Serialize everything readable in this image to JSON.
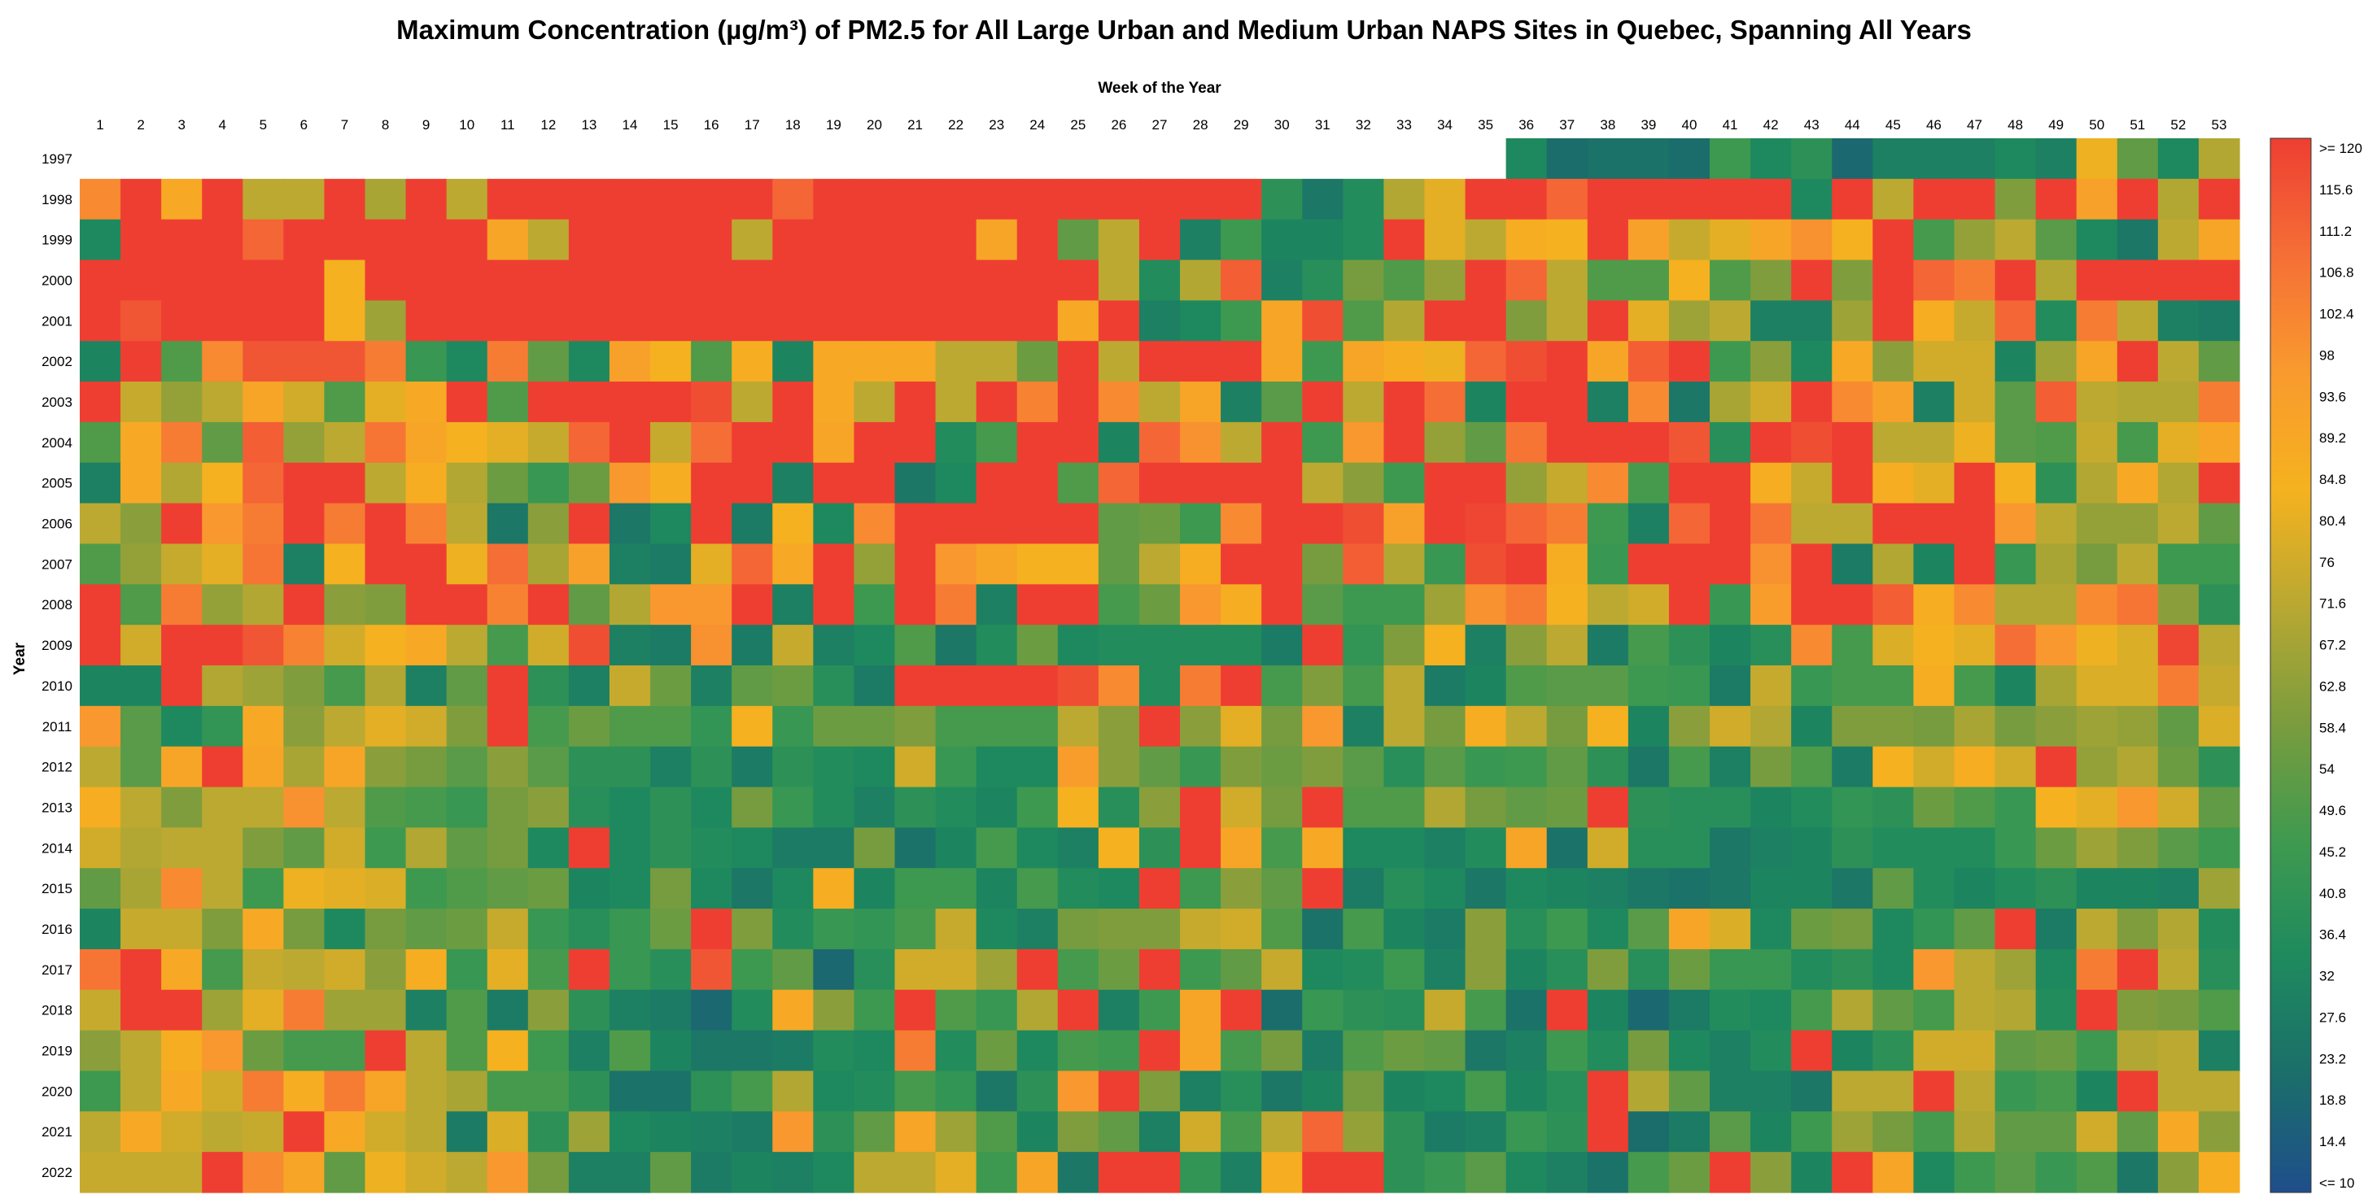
{
  "chart_data": {
    "type": "heatmap",
    "title": "Maximum Concentration (µg/m³) of PM2.5 for All Large Urban and Medium Urban NAPS Sites in Quebec, Spanning All Years",
    "xlabel": "Week of the Year",
    "ylabel": "Year",
    "x": [
      "1",
      "2",
      "3",
      "4",
      "5",
      "6",
      "7",
      "8",
      "9",
      "10",
      "11",
      "12",
      "13",
      "14",
      "15",
      "16",
      "17",
      "18",
      "19",
      "20",
      "21",
      "22",
      "23",
      "24",
      "25",
      "26",
      "27",
      "28",
      "29",
      "30",
      "31",
      "32",
      "33",
      "34",
      "35",
      "36",
      "37",
      "38",
      "39",
      "40",
      "41",
      "42",
      "43",
      "44",
      "45",
      "46",
      "47",
      "48",
      "49",
      "50",
      "51",
      "52",
      "53"
    ],
    "y": [
      "1997",
      "1998",
      "1999",
      "2000",
      "2001",
      "2002",
      "2003",
      "2004",
      "2005",
      "2006",
      "2007",
      "2008",
      "2009",
      "2010",
      "2011",
      "2012",
      "2013",
      "2014",
      "2015",
      "2016",
      "2017",
      "2018",
      "2019",
      "2020",
      "2021",
      "2022"
    ],
    "colorbar_ticks": [
      ">= 120",
      "115.6",
      "111.2",
      "106.8",
      "102.4",
      "98",
      "93.6",
      "89.2",
      "84.8",
      "80.4",
      "76",
      "71.6",
      "67.2",
      "62.8",
      "58.4",
      "54",
      "49.6",
      "45.2",
      "40.8",
      "36.4",
      "32",
      "27.6",
      "23.2",
      "18.8",
      "14.4",
      "<= 10"
    ],
    "color_range": [
      10,
      120
    ],
    "colormap": [
      "#1f4e8c",
      "#1b6e6a",
      "#1e8a5e",
      "#3f9a4f",
      "#7a9c3e",
      "#b8a832",
      "#f5b21f",
      "#f99a2e",
      "#f56f36",
      "#ee3e32"
    ],
    "values": [
      [
        null,
        null,
        null,
        null,
        null,
        null,
        null,
        null,
        null,
        null,
        null,
        null,
        null,
        null,
        null,
        null,
        null,
        null,
        null,
        null,
        null,
        null,
        null,
        null,
        null,
        null,
        null,
        null,
        null,
        null,
        null,
        null,
        null,
        null,
        null,
        34,
        22,
        24,
        24,
        22,
        46,
        34,
        40,
        20,
        30,
        30,
        30,
        34,
        30,
        82,
        54,
        34,
        70
      ],
      [
        100,
        120,
        88,
        120,
        72,
        72,
        120,
        68,
        120,
        72,
        120,
        120,
        120,
        120,
        120,
        120,
        120,
        110,
        120,
        120,
        120,
        120,
        120,
        120,
        120,
        120,
        120,
        120,
        120,
        40,
        26,
        36,
        70,
        80,
        120,
        120,
        110,
        120,
        120,
        120,
        120,
        120,
        34,
        120,
        72,
        120,
        120,
        60,
        120,
        92,
        120,
        70,
        120
      ],
      [
        34,
        120,
        120,
        120,
        110,
        120,
        120,
        120,
        120,
        120,
        90,
        72,
        120,
        120,
        120,
        120,
        72,
        120,
        120,
        120,
        120,
        120,
        90,
        120,
        54,
        72,
        120,
        30,
        46,
        32,
        32,
        36,
        120,
        80,
        72,
        86,
        84,
        120,
        92,
        74,
        80,
        90,
        98,
        84,
        120,
        48,
        64,
        72,
        52,
        34,
        26,
        72,
        90
      ],
      [
        120,
        120,
        120,
        120,
        120,
        120,
        84,
        120,
        120,
        120,
        120,
        120,
        120,
        120,
        120,
        120,
        120,
        120,
        120,
        120,
        120,
        120,
        120,
        120,
        120,
        72,
        36,
        70,
        112,
        30,
        38,
        58,
        50,
        64,
        120,
        110,
        72,
        50,
        50,
        84,
        50,
        60,
        120,
        60,
        120,
        110,
        104,
        120,
        70,
        120,
        120,
        120,
        120
      ],
      [
        120,
        114,
        120,
        120,
        120,
        120,
        84,
        66,
        120,
        120,
        120,
        120,
        120,
        120,
        120,
        120,
        120,
        120,
        120,
        120,
        120,
        120,
        120,
        120,
        88,
        120,
        30,
        34,
        46,
        90,
        116,
        50,
        70,
        120,
        120,
        60,
        72,
        120,
        80,
        66,
        72,
        30,
        30,
        66,
        120,
        86,
        74,
        110,
        36,
        104,
        72,
        30,
        28
      ],
      [
        32,
        120,
        50,
        100,
        114,
        114,
        114,
        104,
        44,
        34,
        104,
        54,
        34,
        92,
        84,
        50,
        86,
        32,
        88,
        88,
        88,
        72,
        72,
        56,
        120,
        72,
        120,
        120,
        120,
        90,
        46,
        90,
        86,
        82,
        110,
        116,
        120,
        90,
        112,
        120,
        46,
        62,
        34,
        88,
        62,
        76,
        76,
        32,
        66,
        90,
        120,
        72,
        54
      ],
      [
        120,
        74,
        64,
        72,
        90,
        76,
        50,
        80,
        88,
        120,
        50,
        120,
        120,
        120,
        120,
        116,
        72,
        120,
        88,
        72,
        120,
        72,
        120,
        102,
        120,
        100,
        72,
        90,
        30,
        52,
        120,
        72,
        120,
        108,
        32,
        120,
        120,
        30,
        100,
        26,
        68,
        76,
        120,
        100,
        92,
        30,
        76,
        52,
        112,
        72,
        70,
        70,
        104
      ],
      [
        50,
        88,
        104,
        54,
        112,
        64,
        72,
        106,
        90,
        84,
        80,
        74,
        110,
        120,
        74,
        108,
        120,
        120,
        90,
        120,
        120,
        36,
        48,
        120,
        120,
        32,
        110,
        98,
        72,
        120,
        46,
        96,
        120,
        64,
        54,
        106,
        120,
        120,
        120,
        114,
        38,
        120,
        116,
        120,
        72,
        72,
        82,
        52,
        50,
        74,
        48,
        80,
        90
      ],
      [
        30,
        88,
        70,
        84,
        110,
        120,
        120,
        72,
        86,
        70,
        56,
        44,
        56,
        96,
        86,
        120,
        120,
        30,
        120,
        120,
        26,
        34,
        120,
        120,
        50,
        110,
        120,
        120,
        120,
        120,
        72,
        62,
        46,
        120,
        120,
        64,
        74,
        100,
        48,
        120,
        120,
        86,
        74,
        120,
        86,
        80,
        120,
        84,
        40,
        70,
        88,
        70,
        120
      ],
      [
        72,
        62,
        120,
        96,
        104,
        120,
        104,
        120,
        102,
        72,
        26,
        62,
        120,
        26,
        34,
        120,
        28,
        84,
        34,
        100,
        120,
        120,
        120,
        120,
        120,
        54,
        56,
        46,
        100,
        120,
        120,
        116,
        92,
        120,
        118,
        110,
        104,
        46,
        30,
        110,
        120,
        106,
        72,
        72,
        120,
        120,
        120,
        96,
        72,
        64,
        64,
        72,
        54
      ],
      [
        50,
        64,
        74,
        80,
        106,
        30,
        84,
        120,
        120,
        82,
        108,
        68,
        92,
        30,
        28,
        80,
        110,
        88,
        120,
        64,
        120,
        96,
        90,
        84,
        84,
        54,
        72,
        86,
        120,
        120,
        58,
        112,
        70,
        44,
        116,
        120,
        86,
        44,
        120,
        120,
        120,
        98,
        120,
        28,
        70,
        32,
        120,
        44,
        68,
        58,
        72,
        46,
        46
      ],
      [
        120,
        50,
        104,
        64,
        70,
        120,
        62,
        60,
        120,
        120,
        102,
        120,
        54,
        70,
        96,
        96,
        120,
        30,
        120,
        46,
        120,
        104,
        30,
        120,
        120,
        48,
        56,
        96,
        86,
        120,
        52,
        46,
        46,
        66,
        98,
        104,
        84,
        72,
        76,
        120,
        44,
        94,
        120,
        120,
        112,
        86,
        100,
        70,
        70,
        100,
        106,
        62,
        40
      ],
      [
        120,
        76,
        120,
        120,
        114,
        102,
        76,
        84,
        88,
        72,
        48,
        76,
        116,
        30,
        28,
        98,
        28,
        74,
        30,
        34,
        50,
        26,
        36,
        56,
        34,
        36,
        36,
        36,
        36,
        28,
        120,
        42,
        60,
        84,
        30,
        62,
        72,
        28,
        48,
        40,
        32,
        38,
        100,
        48,
        78,
        84,
        80,
        108,
        96,
        82,
        78,
        118,
        72
      ],
      [
        32,
        32,
        120,
        70,
        66,
        60,
        48,
        70,
        30,
        54,
        120,
        40,
        30,
        74,
        56,
        30,
        54,
        56,
        38,
        28,
        120,
        120,
        120,
        120,
        116,
        100,
        36,
        104,
        120,
        48,
        60,
        48,
        72,
        28,
        32,
        50,
        52,
        52,
        46,
        44,
        28,
        74,
        44,
        48,
        48,
        86,
        48,
        32,
        68,
        78,
        78,
        104,
        74
      ],
      [
        96,
        52,
        34,
        42,
        88,
        62,
        72,
        80,
        76,
        60,
        120,
        48,
        56,
        50,
        50,
        42,
        84,
        44,
        56,
        56,
        60,
        48,
        48,
        48,
        72,
        62,
        120,
        62,
        80,
        58,
        96,
        30,
        72,
        58,
        86,
        72,
        58,
        84,
        32,
        62,
        76,
        70,
        32,
        60,
        60,
        58,
        68,
        58,
        62,
        66,
        64,
        54,
        78
      ],
      [
        72,
        52,
        90,
        120,
        90,
        68,
        90,
        62,
        58,
        52,
        62,
        52,
        40,
        40,
        30,
        40,
        28,
        40,
        36,
        34,
        76,
        44,
        34,
        34,
        94,
        62,
        54,
        44,
        60,
        56,
        60,
        52,
        38,
        52,
        44,
        46,
        54,
        40,
        26,
        48,
        30,
        58,
        50,
        28,
        84,
        76,
        86,
        76,
        120,
        64,
        70,
        56,
        40
      ],
      [
        86,
        72,
        60,
        72,
        72,
        98,
        72,
        50,
        48,
        44,
        58,
        62,
        38,
        34,
        40,
        34,
        58,
        44,
        36,
        30,
        40,
        36,
        32,
        46,
        84,
        38,
        62,
        120,
        76,
        58,
        120,
        50,
        50,
        70,
        58,
        54,
        56,
        120,
        40,
        38,
        38,
        32,
        36,
        42,
        40,
        56,
        50,
        44,
        84,
        80,
        96,
        76,
        54
      ],
      [
        76,
        70,
        72,
        72,
        60,
        54,
        76,
        46,
        70,
        54,
        58,
        34,
        120,
        34,
        40,
        36,
        34,
        28,
        28,
        58,
        24,
        32,
        48,
        34,
        30,
        84,
        40,
        120,
        90,
        48,
        88,
        34,
        34,
        30,
        36,
        90,
        24,
        76,
        38,
        38,
        26,
        30,
        32,
        40,
        36,
        36,
        36,
        44,
        56,
        66,
        60,
        52,
        46
      ],
      [
        54,
        68,
        100,
        72,
        46,
        82,
        80,
        78,
        46,
        50,
        54,
        56,
        32,
        34,
        58,
        34,
        26,
        34,
        86,
        32,
        46,
        46,
        32,
        48,
        36,
        34,
        120,
        46,
        62,
        54,
        120,
        28,
        38,
        34,
        26,
        34,
        32,
        30,
        26,
        24,
        26,
        32,
        32,
        26,
        54,
        36,
        32,
        36,
        40,
        32,
        32,
        30,
        66
      ],
      [
        32,
        74,
        74,
        60,
        88,
        58,
        34,
        58,
        54,
        56,
        74,
        44,
        38,
        44,
        56,
        120,
        60,
        36,
        44,
        42,
        48,
        74,
        34,
        30,
        58,
        60,
        60,
        74,
        76,
        50,
        24,
        48,
        32,
        28,
        62,
        38,
        46,
        34,
        52,
        90,
        78,
        34,
        56,
        58,
        34,
        42,
        54,
        120,
        28,
        72,
        60,
        70,
        36
      ],
      [
        106,
        120,
        88,
        48,
        74,
        72,
        76,
        62,
        86,
        44,
        80,
        48,
        120,
        44,
        38,
        114,
        46,
        54,
        20,
        38,
        76,
        76,
        66,
        120,
        48,
        56,
        120,
        46,
        54,
        74,
        34,
        36,
        46,
        30,
        62,
        32,
        38,
        60,
        38,
        56,
        44,
        44,
        36,
        40,
        34,
        96,
        72,
        66,
        34,
        104,
        120,
        72,
        38
      ],
      [
        74,
        120,
        120,
        66,
        80,
        104,
        66,
        66,
        30,
        50,
        28,
        62,
        40,
        30,
        28,
        20,
        36,
        88,
        62,
        46,
        120,
        50,
        44,
        70,
        120,
        30,
        46,
        90,
        120,
        22,
        44,
        40,
        38,
        74,
        48,
        24,
        120,
        32,
        20,
        28,
        36,
        34,
        48,
        70,
        54,
        48,
        72,
        70,
        36,
        120,
        60,
        58,
        50
      ],
      [
        62,
        72,
        86,
        96,
        56,
        48,
        48,
        120,
        72,
        50,
        84,
        46,
        30,
        50,
        32,
        26,
        26,
        28,
        36,
        34,
        104,
        36,
        56,
        34,
        48,
        46,
        120,
        90,
        48,
        58,
        28,
        50,
        56,
        54,
        26,
        30,
        46,
        36,
        58,
        34,
        30,
        36,
        120,
        32,
        40,
        76,
        76,
        54,
        56,
        46,
        70,
        72,
        30
      ],
      [
        46,
        72,
        88,
        76,
        104,
        86,
        104,
        90,
        72,
        68,
        48,
        48,
        40,
        24,
        24,
        40,
        48,
        70,
        34,
        36,
        48,
        42,
        26,
        40,
        96,
        120,
        60,
        30,
        38,
        26,
        32,
        58,
        32,
        34,
        48,
        32,
        38,
        120,
        70,
        54,
        30,
        30,
        26,
        72,
        72,
        120,
        72,
        44,
        48,
        32,
        120,
        72,
        72
      ],
      [
        72,
        88,
        76,
        72,
        74,
        120,
        88,
        76,
        72,
        28,
        78,
        40,
        66,
        34,
        32,
        30,
        28,
        96,
        40,
        54,
        90,
        66,
        50,
        32,
        60,
        54,
        30,
        76,
        48,
        72,
        110,
        64,
        40,
        28,
        30,
        44,
        40,
        120,
        22,
        28,
        52,
        32,
        46,
        66,
        58,
        48,
        70,
        54,
        54,
        76,
        54,
        88,
        62
      ],
      [
        74,
        74,
        74,
        120,
        100,
        90,
        54,
        82,
        76,
        72,
        96,
        58,
        30,
        30,
        54,
        28,
        32,
        30,
        34,
        72,
        72,
        80,
        46,
        90,
        26,
        120,
        120,
        42,
        30,
        86,
        120,
        120,
        40,
        44,
        52,
        34,
        30,
        24,
        48,
        56,
        120,
        62,
        32,
        120,
        90,
        34,
        46,
        52,
        44,
        50,
        26,
        62,
        86
      ]
    ]
  }
}
